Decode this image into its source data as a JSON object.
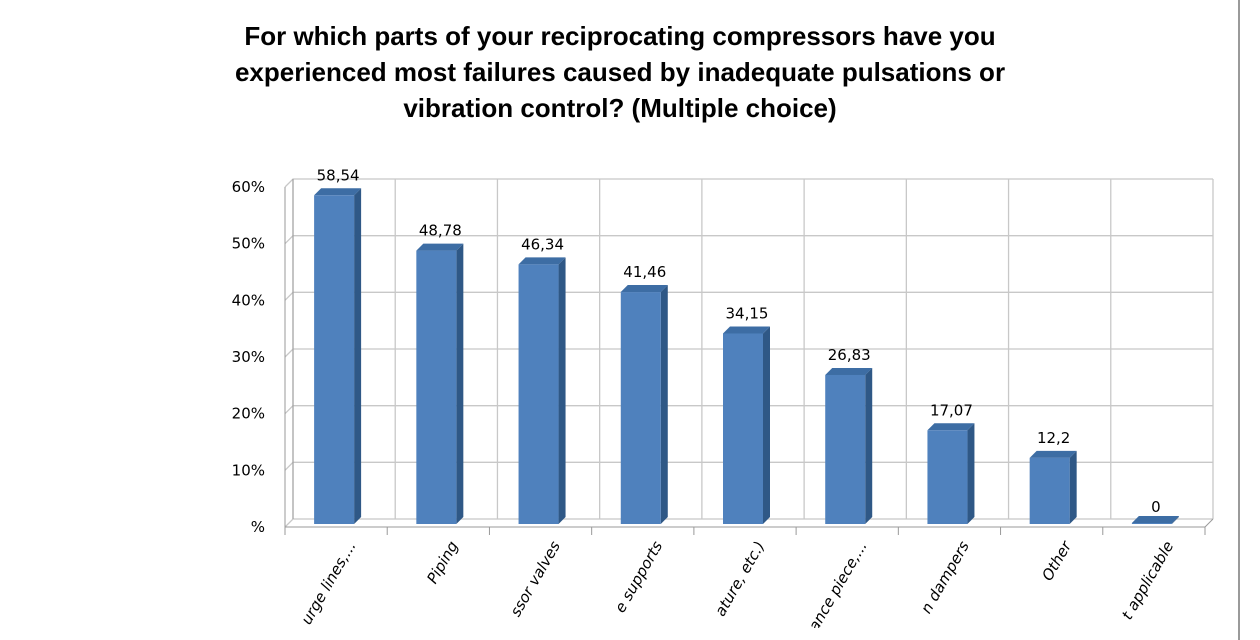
{
  "chart_data": {
    "type": "bar",
    "title_lines": [
      "For which parts of your reciprocating compressors have you",
      "experienced most failures caused by inadequate pulsations or",
      "vibration control? (Multiple choice)"
    ],
    "categories": [
      "urge lines,...",
      "Piping",
      "ssor valves",
      "e supports",
      "ature, etc.)",
      "ance piece,...",
      "n dampers",
      "Other",
      "t applicable"
    ],
    "values": [
      58.54,
      48.78,
      46.34,
      41.46,
      34.15,
      26.83,
      17.07,
      12.2,
      0
    ],
    "data_labels": [
      "58,54",
      "48,78",
      "46,34",
      "41,46",
      "34,15",
      "26,83",
      "17,07",
      "12,2",
      "0"
    ],
    "ytick_labels": [
      "%",
      "10%",
      "20%",
      "30%",
      "40%",
      "50%",
      "60%"
    ],
    "ylim": [
      0,
      60
    ],
    "grid": true,
    "style": "3d-column",
    "bar_color": "#4f81bd"
  }
}
